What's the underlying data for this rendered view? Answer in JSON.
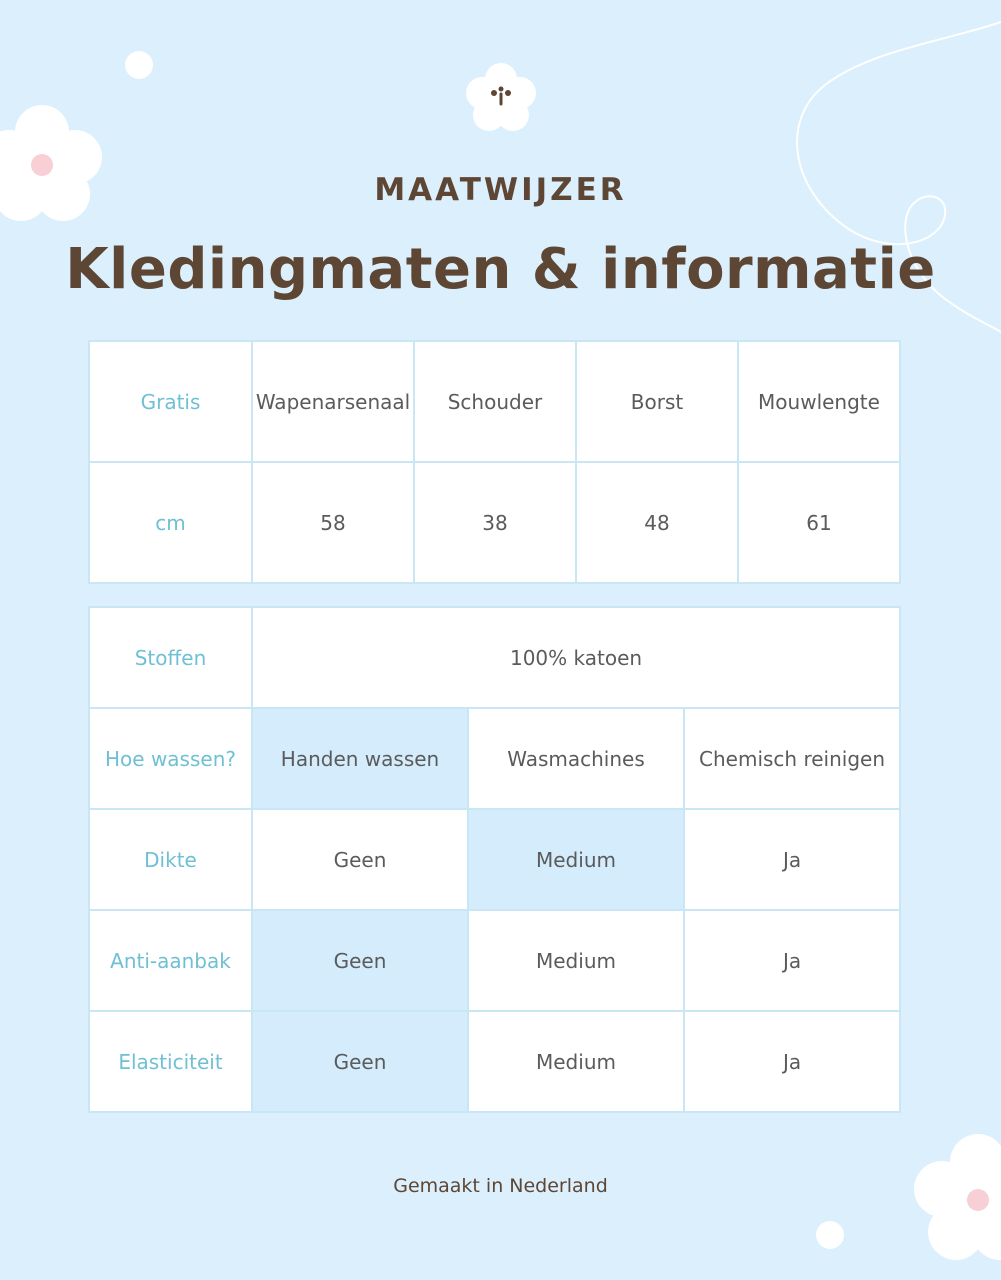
{
  "header": {
    "subtitle": "MAATWIJZER",
    "title": "Kledingmaten & informatie"
  },
  "size_table": {
    "headers": [
      "Gratis",
      "Wapenarsenaal",
      "Schouder",
      "Borst",
      "Mouwlengte"
    ],
    "row": [
      "cm",
      "58",
      "38",
      "48",
      "61"
    ]
  },
  "info_table": {
    "fabric": {
      "label": "Stoffen",
      "value": "100% katoen"
    },
    "washing": {
      "label": "Hoe wassen?",
      "options": [
        "Handen wassen",
        "Wasmachines",
        "Chemisch reinigen"
      ]
    },
    "rows": [
      {
        "label": "Dikte",
        "values": [
          "Geen",
          "Medium",
          "Ja"
        ]
      },
      {
        "label": "Anti-aanbak",
        "values": [
          "Geen",
          "Medium",
          "Ja"
        ]
      },
      {
        "label": "Elasticiteit",
        "values": [
          "Geen",
          "Medium",
          "Ja"
        ]
      }
    ]
  },
  "footer": {
    "text": "Gemaakt in Nederland"
  },
  "colors": {
    "background": "#dbeffc",
    "heading": "#5e4634",
    "label": "#6fc0d4",
    "highlight": "#d4ecfb",
    "flower": "#ffffff",
    "flower_center": "#f7cfd4"
  },
  "icons": [
    "flower-icon",
    "sprout-icon",
    "swirl-line-icon",
    "dot-icon"
  ]
}
